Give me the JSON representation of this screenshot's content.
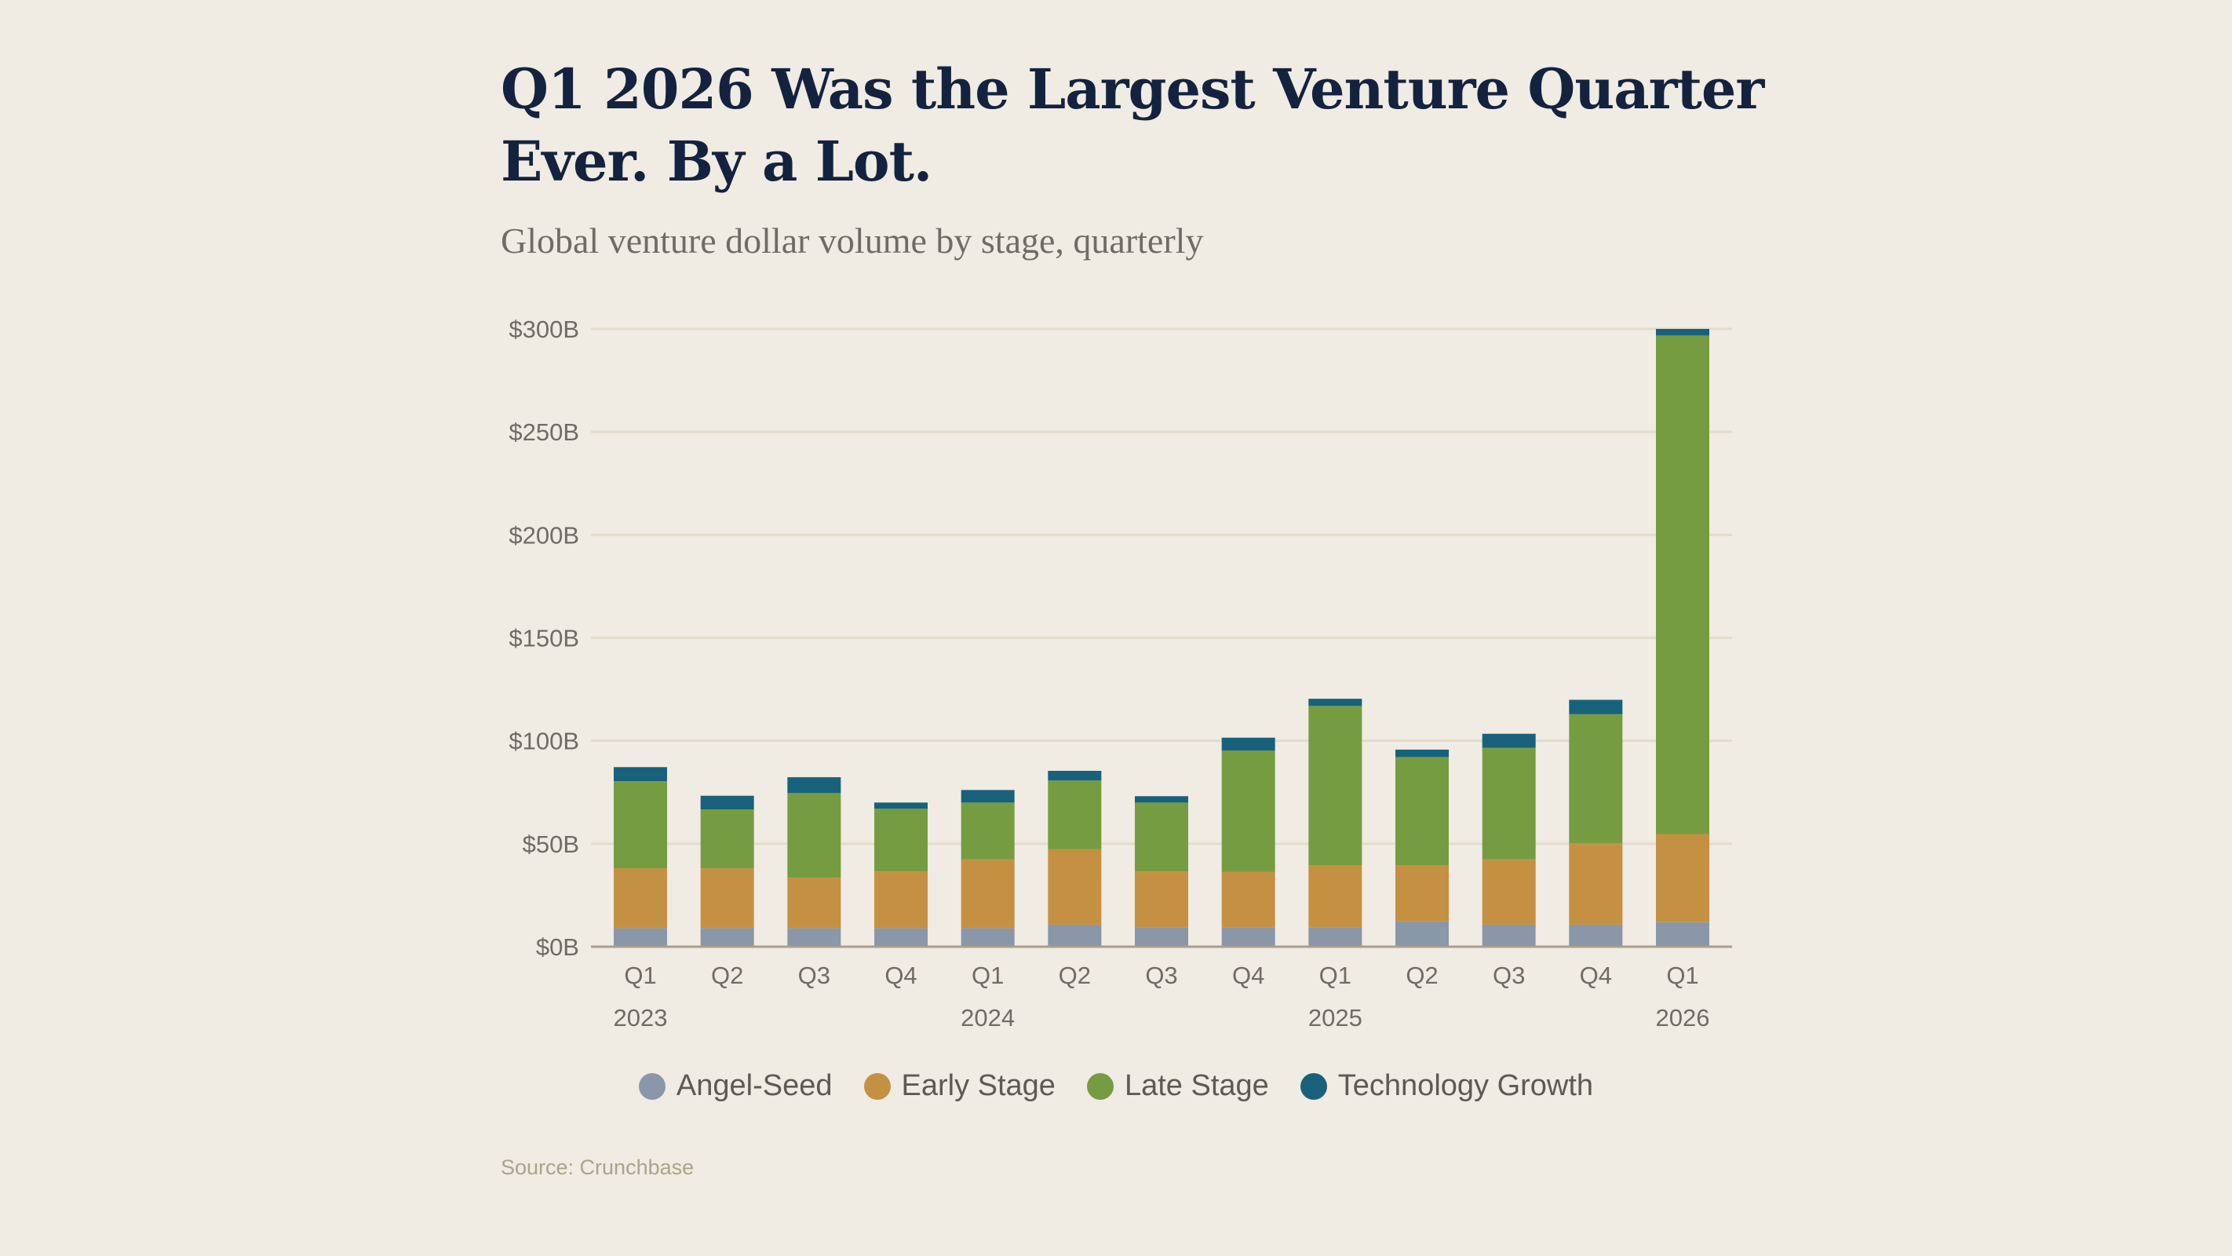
{
  "title": "Q1 2026 Was the Largest Venture Quarter Ever. By a Lot.",
  "subtitle": "Global venture dollar volume by stage, quarterly",
  "source": "Source: Crunchbase",
  "chart_data": {
    "type": "bar",
    "stacked": true,
    "categories": [
      "Q1",
      "Q2",
      "Q3",
      "Q4",
      "Q1",
      "Q2",
      "Q3",
      "Q4",
      "Q1",
      "Q2",
      "Q3",
      "Q4",
      "Q1"
    ],
    "year_labels": [
      "2023",
      "",
      "",
      "",
      "2024",
      "",
      "",
      "",
      "2025",
      "",
      "",
      "",
      "2026"
    ],
    "ylim": [
      0,
      300
    ],
    "yticks": [
      0,
      50,
      100,
      150,
      200,
      250,
      300
    ],
    "ytick_labels": [
      "$0B",
      "$50B",
      "$100B",
      "$150B",
      "$200B",
      "$250B",
      "$300B"
    ],
    "unit": "$B",
    "grid": true,
    "legend_position": "bottom",
    "series": [
      {
        "name": "Angel-Seed",
        "color": "#8a97a8",
        "values": [
          9,
          9,
          9,
          9,
          9,
          10.7,
          9.4,
          9.4,
          9.4,
          12.3,
          10.7,
          10.7,
          11.9
        ]
      },
      {
        "name": "Early Stage",
        "color": "#c49143",
        "values": [
          29.1,
          29,
          24.5,
          27.5,
          33.4,
          36.6,
          27.1,
          27,
          30.1,
          27.2,
          31.7,
          39.6,
          42.8
        ]
      },
      {
        "name": "Late Stage",
        "color": "#769c42",
        "values": [
          42.3,
          28.7,
          41.1,
          30.5,
          27.6,
          33.4,
          33.5,
          58.8,
          77.4,
          52.6,
          54.2,
          62.6,
          242.1
        ]
      },
      {
        "name": "Technology Growth",
        "color": "#17627a",
        "values": [
          6.8,
          6.6,
          7.7,
          3,
          6.1,
          4.7,
          3.1,
          6.3,
          3.5,
          3.6,
          6.8,
          7,
          3.2
        ]
      }
    ]
  }
}
